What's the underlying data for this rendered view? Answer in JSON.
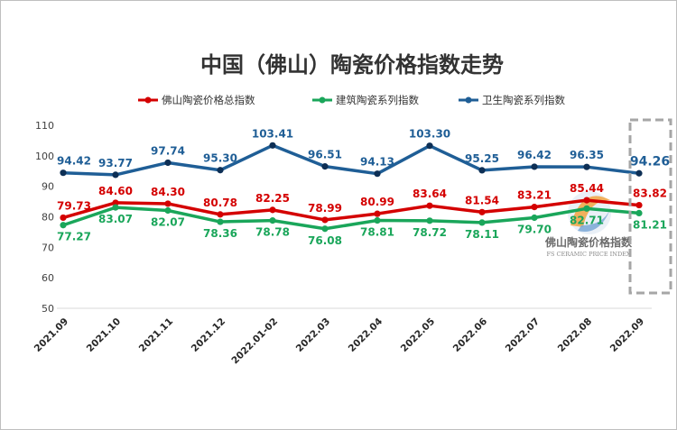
{
  "chart_data": {
    "type": "line",
    "title": "中国（佛山）陶瓷价格指数走势",
    "xlabel": "",
    "ylabel": "",
    "categories": [
      "2021.09",
      "2021.10",
      "2021.11",
      "2021.12",
      "2022.01-02",
      "2022.03",
      "2022.04",
      "2022.05",
      "2022.06",
      "2022.07",
      "2022.08",
      "2022.09"
    ],
    "yticks": [
      "110",
      "100",
      "90",
      "80",
      "70",
      "60",
      "50"
    ],
    "ylim": [
      50,
      110
    ],
    "grid": false,
    "legend": "top",
    "series": [
      {
        "name": "佛山陶瓷价格总指数",
        "color": "#d40000",
        "values": [
          79.73,
          84.6,
          84.3,
          80.78,
          82.25,
          78.99,
          80.99,
          83.64,
          81.54,
          83.21,
          85.44,
          83.82
        ],
        "labels": [
          "79.73",
          "84.60",
          "84.30",
          "80.78",
          "82.25",
          "78.99",
          "80.99",
          "83.64",
          "81.54",
          "83.21",
          "85.44",
          "83.82"
        ]
      },
      {
        "name": "建筑陶瓷系列指数",
        "color": "#1aa65a",
        "values": [
          77.27,
          83.07,
          82.07,
          78.36,
          78.78,
          76.08,
          78.81,
          78.72,
          78.11,
          79.7,
          82.71,
          81.21
        ],
        "labels": [
          "77.27",
          "83.07",
          "82.07",
          "78.36",
          "78.78",
          "76.08",
          "78.81",
          "78.72",
          "78.11",
          "79.70",
          "82.71",
          "81.21"
        ]
      },
      {
        "name": "卫生陶瓷系列指数",
        "color": "#1f5e96",
        "values": [
          94.42,
          93.77,
          97.74,
          95.3,
          103.41,
          96.51,
          94.13,
          103.3,
          95.25,
          96.42,
          96.35,
          94.26
        ],
        "labels": [
          "94.42",
          "93.77",
          "97.74",
          "95.30",
          "103.41",
          "96.51",
          "94.13",
          "103.30",
          "95.25",
          "96.42",
          "96.35",
          "94.26"
        ]
      }
    ]
  },
  "watermark": {
    "cn": "佛山陶瓷价格指数",
    "en": "FS CERAMIC PRICE INDEX"
  }
}
